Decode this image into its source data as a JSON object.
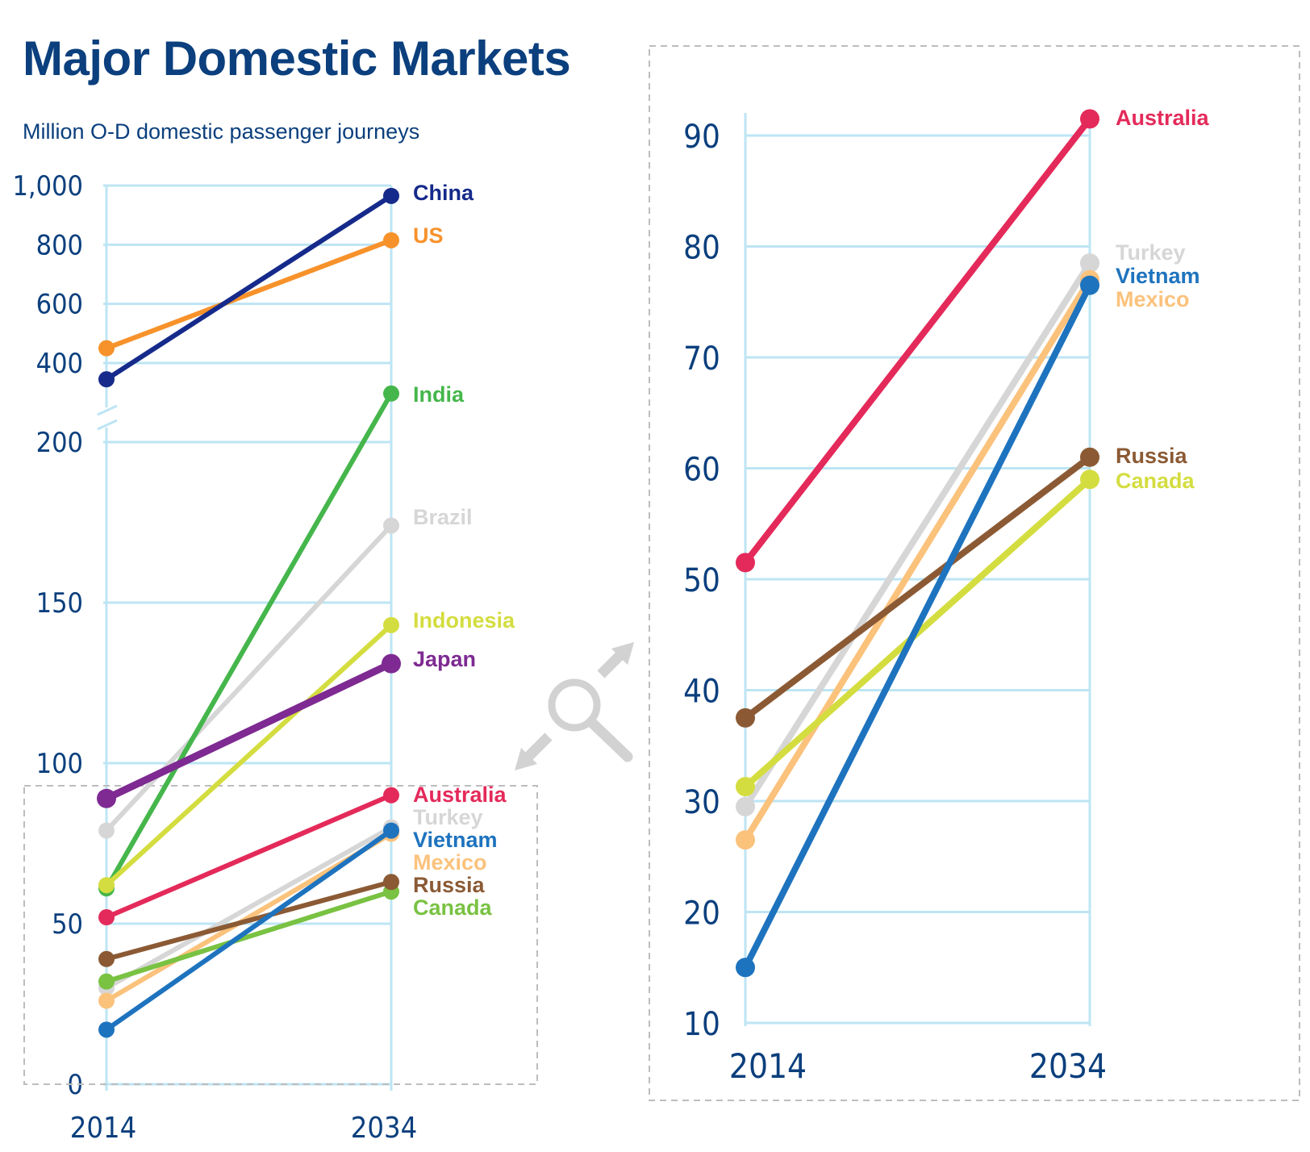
{
  "title": "Major Domestic Markets",
  "subtitle": "Million O-D domestic passenger journeys",
  "chart_data": [
    {
      "type": "line",
      "x": [
        "2014",
        "2034"
      ],
      "y_ticks": [
        "0",
        "50",
        "100",
        "150",
        "200",
        "400",
        "600",
        "800",
        "1,000"
      ],
      "axis_break": "between 200 and 400",
      "grid": true,
      "series": [
        {
          "name": "China",
          "values": [
            345,
            965
          ],
          "color": "#152a8a"
        },
        {
          "name": "US",
          "values": [
            450,
            815
          ],
          "color": "#f7922b"
        },
        {
          "name": "India",
          "values": [
            61,
            297
          ],
          "color": "#45b64b"
        },
        {
          "name": "Brazil",
          "values": [
            79,
            174
          ],
          "color": "#d6d6d6"
        },
        {
          "name": "Indonesia",
          "values": [
            62,
            143
          ],
          "color": "#d4dd3f"
        },
        {
          "name": "Japan",
          "values": [
            89,
            131
          ],
          "color": "#7e2a92"
        },
        {
          "name": "Australia",
          "values": [
            52,
            90
          ],
          "color": "#e42a5a"
        },
        {
          "name": "Turkey",
          "values": [
            30,
            80
          ],
          "color": "#d6d6d6"
        },
        {
          "name": "Vietnam",
          "values": [
            17,
            79
          ],
          "color": "#1e73be"
        },
        {
          "name": "Mexico",
          "values": [
            26,
            78
          ],
          "color": "#fbc27c"
        },
        {
          "name": "Russia",
          "values": [
            39,
            63
          ],
          "color": "#8b5a34"
        },
        {
          "name": "Canada",
          "values": [
            32,
            60
          ],
          "color": "#79c242"
        }
      ]
    },
    {
      "type": "line",
      "x": [
        "2014",
        "2034"
      ],
      "y_ticks": [
        "10",
        "20",
        "30",
        "40",
        "50",
        "60",
        "70",
        "80",
        "90"
      ],
      "ylim": [
        10,
        90
      ],
      "grid": true,
      "series": [
        {
          "name": "Australia",
          "values": [
            51.5,
            91.5
          ],
          "color": "#e42a5a"
        },
        {
          "name": "Turkey",
          "values": [
            29.5,
            78.5
          ],
          "color": "#d6d6d6"
        },
        {
          "name": "Mexico",
          "values": [
            26.5,
            77
          ],
          "color": "#fbc27c"
        },
        {
          "name": "Vietnam",
          "values": [
            15,
            76.5
          ],
          "color": "#1e73be"
        },
        {
          "name": "Russia",
          "values": [
            37.5,
            61
          ],
          "color": "#8b5a34"
        },
        {
          "name": "Canada",
          "values": [
            31.3,
            59
          ],
          "color": "#d4dd3f"
        }
      ]
    }
  ]
}
